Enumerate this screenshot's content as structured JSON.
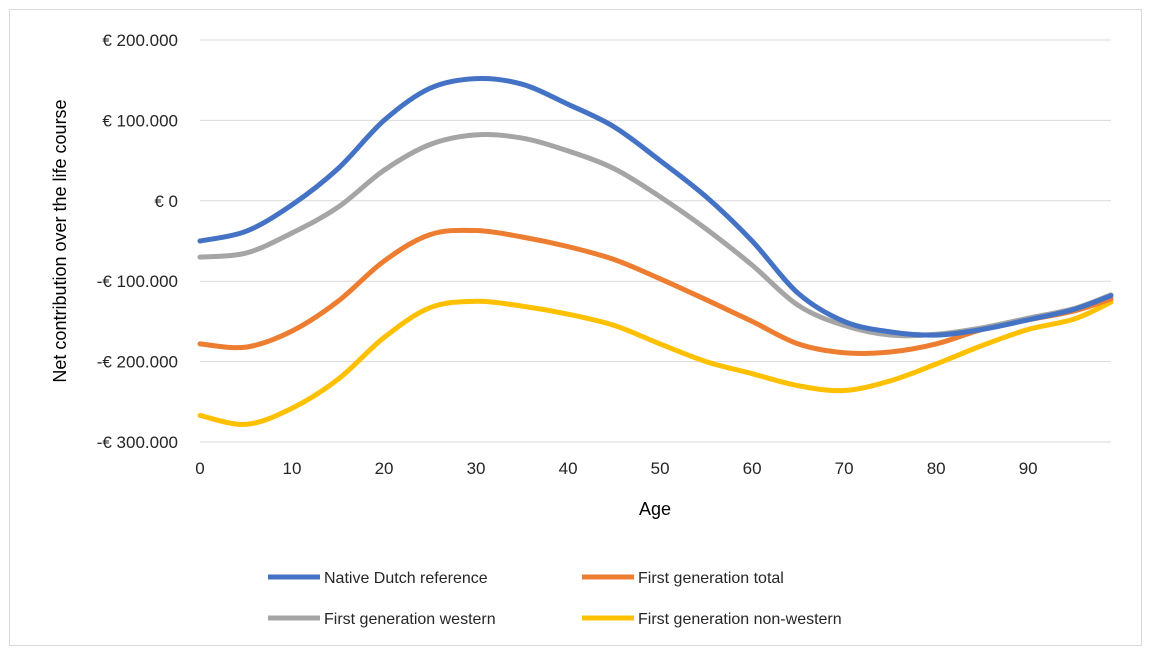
{
  "chart_data": {
    "type": "line",
    "xlabel": "Age",
    "ylabel": "Net contribution over the life course",
    "xlim": [
      0,
      99
    ],
    "ylim": [
      -300000,
      200000
    ],
    "x_ticks": [
      0,
      10,
      20,
      30,
      40,
      50,
      60,
      70,
      80,
      90
    ],
    "y_ticks": [
      200000,
      100000,
      0,
      -100000,
      -200000,
      -300000
    ],
    "y_tick_labels": [
      "€ 200.000",
      "€ 100.000",
      "€ 0",
      "-€ 100.000",
      "-€ 200.000",
      "-€ 300.000"
    ],
    "grid": "horizontal",
    "legend_position": "bottom",
    "series": [
      {
        "name": "Native Dutch reference",
        "color": "#4472C4",
        "points": [
          [
            0,
            -50000
          ],
          [
            5,
            -38000
          ],
          [
            10,
            -5000
          ],
          [
            15,
            40000
          ],
          [
            20,
            100000
          ],
          [
            25,
            140000
          ],
          [
            30,
            152000
          ],
          [
            35,
            145000
          ],
          [
            40,
            120000
          ],
          [
            45,
            92000
          ],
          [
            50,
            50000
          ],
          [
            55,
            5000
          ],
          [
            60,
            -50000
          ],
          [
            65,
            -115000
          ],
          [
            70,
            -150000
          ],
          [
            75,
            -163000
          ],
          [
            80,
            -167000
          ],
          [
            85,
            -160000
          ],
          [
            90,
            -148000
          ],
          [
            95,
            -135000
          ],
          [
            99,
            -118000
          ]
        ]
      },
      {
        "name": "First generation total",
        "color": "#ED7D31",
        "points": [
          [
            0,
            -178000
          ],
          [
            5,
            -182000
          ],
          [
            10,
            -162000
          ],
          [
            15,
            -125000
          ],
          [
            20,
            -75000
          ],
          [
            25,
            -42000
          ],
          [
            30,
            -37000
          ],
          [
            35,
            -45000
          ],
          [
            40,
            -57000
          ],
          [
            45,
            -73000
          ],
          [
            50,
            -97000
          ],
          [
            55,
            -123000
          ],
          [
            60,
            -150000
          ],
          [
            65,
            -178000
          ],
          [
            70,
            -189000
          ],
          [
            75,
            -188000
          ],
          [
            80,
            -178000
          ],
          [
            85,
            -160000
          ],
          [
            90,
            -148000
          ],
          [
            95,
            -137000
          ],
          [
            99,
            -122000
          ]
        ]
      },
      {
        "name": "First generation western",
        "color": "#A5A5A5",
        "points": [
          [
            0,
            -70000
          ],
          [
            5,
            -65000
          ],
          [
            10,
            -40000
          ],
          [
            15,
            -8000
          ],
          [
            20,
            38000
          ],
          [
            25,
            70000
          ],
          [
            30,
            82000
          ],
          [
            35,
            78000
          ],
          [
            40,
            62000
          ],
          [
            45,
            40000
          ],
          [
            50,
            5000
          ],
          [
            55,
            -35000
          ],
          [
            60,
            -80000
          ],
          [
            65,
            -130000
          ],
          [
            70,
            -155000
          ],
          [
            75,
            -167000
          ],
          [
            80,
            -166000
          ],
          [
            85,
            -158000
          ],
          [
            90,
            -146000
          ],
          [
            95,
            -134000
          ],
          [
            99,
            -117000
          ]
        ]
      },
      {
        "name": "First generation non-western",
        "color": "#FFC000",
        "points": [
          [
            0,
            -267000
          ],
          [
            5,
            -278000
          ],
          [
            10,
            -258000
          ],
          [
            15,
            -222000
          ],
          [
            20,
            -170000
          ],
          [
            25,
            -133000
          ],
          [
            30,
            -125000
          ],
          [
            35,
            -131000
          ],
          [
            40,
            -141000
          ],
          [
            45,
            -155000
          ],
          [
            50,
            -178000
          ],
          [
            55,
            -200000
          ],
          [
            60,
            -215000
          ],
          [
            65,
            -230000
          ],
          [
            70,
            -236000
          ],
          [
            75,
            -224000
          ],
          [
            80,
            -203000
          ],
          [
            85,
            -180000
          ],
          [
            90,
            -160000
          ],
          [
            95,
            -147000
          ],
          [
            99,
            -126000
          ]
        ]
      }
    ]
  }
}
